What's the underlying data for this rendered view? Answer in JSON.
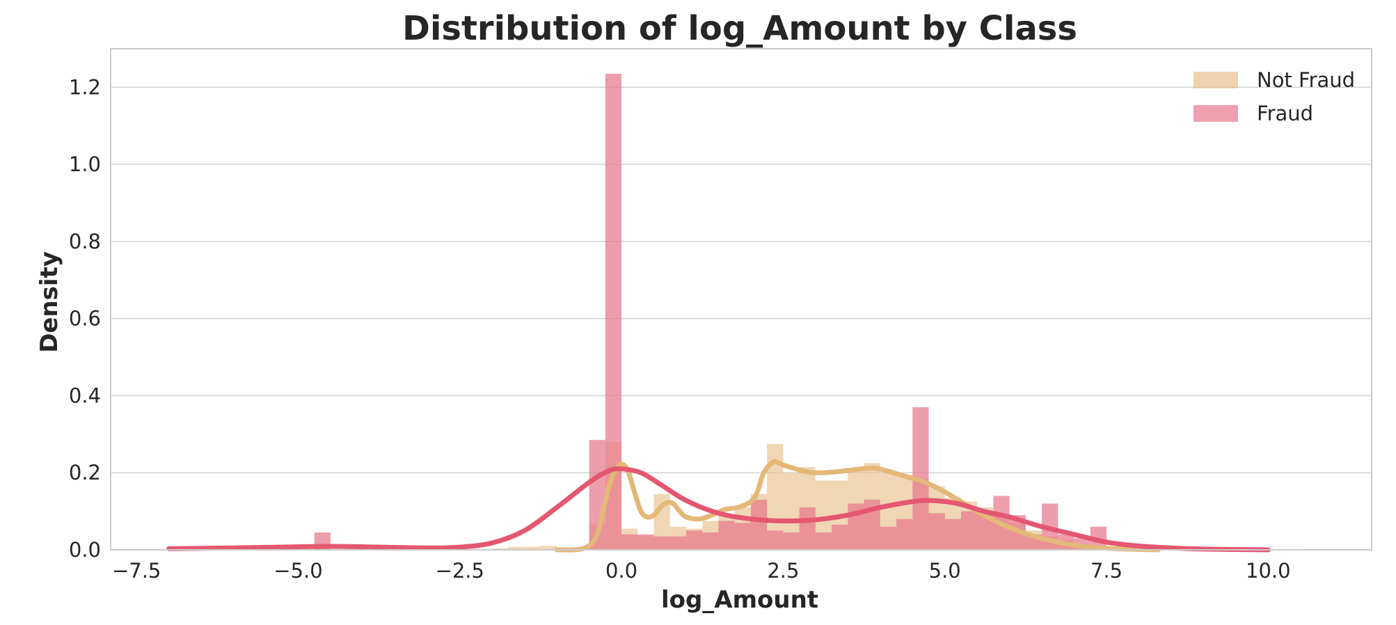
{
  "chart_data": {
    "type": "histogram-kde",
    "title": "Distribution of log_Amount by Class",
    "xlabel": "log_Amount",
    "ylabel": "Density",
    "xlim": [
      -7.9,
      11.6
    ],
    "ylim": [
      0,
      1.3
    ],
    "x_ticks": [
      -7.5,
      -5.0,
      -2.5,
      0.0,
      2.5,
      5.0,
      7.5,
      10.0
    ],
    "x_tick_labels": [
      "−7.5",
      "−5.0",
      "−2.5",
      "0.0",
      "2.5",
      "5.0",
      "7.5",
      "10.0"
    ],
    "y_ticks": [
      0.0,
      0.2,
      0.4,
      0.6,
      0.8,
      1.0,
      1.2
    ],
    "y_tick_labels": [
      "0.0",
      "0.2",
      "0.4",
      "0.6",
      "0.8",
      "1.0",
      "1.2"
    ],
    "grid": "horizontal",
    "legend_position": "top-right",
    "series": [
      {
        "name": "Not Fraud",
        "color": "#e8c08e",
        "kde_color": "#e3b878",
        "bins": [
          [
            -2.0,
            -1.75,
            0.004
          ],
          [
            -1.75,
            -1.5,
            0.008
          ],
          [
            -1.5,
            -1.25,
            0.008
          ],
          [
            -1.25,
            -1.0,
            0.01
          ],
          [
            -1.0,
            -0.75,
            0.006
          ],
          [
            -0.75,
            -0.5,
            0.005
          ],
          [
            -0.5,
            -0.25,
            0.065
          ],
          [
            -0.25,
            0.0,
            0.28
          ],
          [
            0.0,
            0.25,
            0.055
          ],
          [
            0.25,
            0.5,
            0.035
          ],
          [
            0.5,
            0.75,
            0.145
          ],
          [
            0.75,
            1.0,
            0.06
          ],
          [
            1.0,
            1.25,
            0.055
          ],
          [
            1.25,
            1.5,
            0.075
          ],
          [
            1.5,
            1.75,
            0.09
          ],
          [
            1.75,
            2.0,
            0.11
          ],
          [
            2.0,
            2.25,
            0.145
          ],
          [
            2.25,
            2.5,
            0.275
          ],
          [
            2.5,
            2.75,
            0.2
          ],
          [
            2.75,
            3.0,
            0.215
          ],
          [
            3.0,
            3.25,
            0.18
          ],
          [
            3.25,
            3.5,
            0.18
          ],
          [
            3.5,
            3.75,
            0.21
          ],
          [
            3.75,
            4.0,
            0.225
          ],
          [
            4.0,
            4.25,
            0.2
          ],
          [
            4.25,
            4.5,
            0.195
          ],
          [
            4.5,
            4.75,
            0.185
          ],
          [
            4.75,
            5.0,
            0.165
          ],
          [
            5.0,
            5.25,
            0.135
          ],
          [
            5.25,
            5.5,
            0.125
          ],
          [
            5.5,
            5.75,
            0.11
          ],
          [
            5.75,
            6.0,
            0.09
          ],
          [
            6.0,
            6.25,
            0.07
          ],
          [
            6.25,
            6.5,
            0.05
          ],
          [
            6.5,
            6.75,
            0.035
          ],
          [
            6.75,
            7.0,
            0.025
          ],
          [
            7.0,
            7.25,
            0.015
          ],
          [
            7.25,
            7.5,
            0.01
          ],
          [
            7.5,
            7.75,
            0.006
          ],
          [
            7.75,
            8.0,
            0.004
          ],
          [
            8.0,
            8.25,
            0.002
          ],
          [
            10.0,
            10.25,
            0.002
          ],
          [
            10.25,
            10.5,
            0.002
          ]
        ],
        "kde": [
          [
            -1.0,
            0.0
          ],
          [
            -0.6,
            0.003
          ],
          [
            -0.4,
            0.03
          ],
          [
            -0.3,
            0.09
          ],
          [
            -0.2,
            0.16
          ],
          [
            -0.1,
            0.205
          ],
          [
            0.0,
            0.222
          ],
          [
            0.1,
            0.205
          ],
          [
            0.2,
            0.15
          ],
          [
            0.3,
            0.1
          ],
          [
            0.4,
            0.085
          ],
          [
            0.5,
            0.09
          ],
          [
            0.6,
            0.11
          ],
          [
            0.7,
            0.122
          ],
          [
            0.8,
            0.12
          ],
          [
            0.9,
            0.1
          ],
          [
            1.0,
            0.085
          ],
          [
            1.2,
            0.08
          ],
          [
            1.4,
            0.09
          ],
          [
            1.6,
            0.105
          ],
          [
            1.8,
            0.11
          ],
          [
            2.0,
            0.125
          ],
          [
            2.1,
            0.15
          ],
          [
            2.2,
            0.2
          ],
          [
            2.35,
            0.228
          ],
          [
            2.5,
            0.22
          ],
          [
            2.8,
            0.205
          ],
          [
            3.0,
            0.2
          ],
          [
            3.3,
            0.202
          ],
          [
            3.6,
            0.208
          ],
          [
            3.9,
            0.212
          ],
          [
            4.1,
            0.205
          ],
          [
            4.4,
            0.19
          ],
          [
            4.7,
            0.175
          ],
          [
            5.0,
            0.15
          ],
          [
            5.3,
            0.12
          ],
          [
            5.6,
            0.09
          ],
          [
            5.9,
            0.065
          ],
          [
            6.2,
            0.045
          ],
          [
            6.5,
            0.03
          ],
          [
            6.8,
            0.018
          ],
          [
            7.1,
            0.01
          ],
          [
            7.4,
            0.005
          ],
          [
            7.8,
            0.002
          ],
          [
            8.3,
            0.0
          ]
        ]
      },
      {
        "name": "Fraud",
        "color": "#e8778b",
        "kde_color": "#e45771",
        "bins": [
          [
            -4.75,
            -4.5,
            0.045
          ],
          [
            -0.5,
            -0.25,
            0.285
          ],
          [
            -0.25,
            0.0,
            1.235
          ],
          [
            0.0,
            0.25,
            0.04
          ],
          [
            0.25,
            0.5,
            0.04
          ],
          [
            0.5,
            0.75,
            0.035
          ],
          [
            0.75,
            1.0,
            0.035
          ],
          [
            1.0,
            1.25,
            0.05
          ],
          [
            1.25,
            1.5,
            0.045
          ],
          [
            1.5,
            1.75,
            0.075
          ],
          [
            1.75,
            2.0,
            0.07
          ],
          [
            2.0,
            2.25,
            0.13
          ],
          [
            2.25,
            2.5,
            0.05
          ],
          [
            2.5,
            2.75,
            0.045
          ],
          [
            2.75,
            3.0,
            0.11
          ],
          [
            3.0,
            3.25,
            0.045
          ],
          [
            3.25,
            3.5,
            0.065
          ],
          [
            3.5,
            3.75,
            0.12
          ],
          [
            3.75,
            4.0,
            0.13
          ],
          [
            4.0,
            4.25,
            0.06
          ],
          [
            4.25,
            4.5,
            0.08
          ],
          [
            4.5,
            4.75,
            0.37
          ],
          [
            4.75,
            5.0,
            0.095
          ],
          [
            5.0,
            5.25,
            0.08
          ],
          [
            5.25,
            5.5,
            0.1
          ],
          [
            5.5,
            5.75,
            0.1
          ],
          [
            5.75,
            6.0,
            0.14
          ],
          [
            6.0,
            6.25,
            0.09
          ],
          [
            6.25,
            6.5,
            0.04
          ],
          [
            6.5,
            6.75,
            0.12
          ],
          [
            6.75,
            7.0,
            0.04
          ],
          [
            7.0,
            7.25,
            0.03
          ],
          [
            7.25,
            7.5,
            0.06
          ]
        ],
        "kde": [
          [
            -7.0,
            0.003
          ],
          [
            -6.0,
            0.005
          ],
          [
            -5.0,
            0.008
          ],
          [
            -4.5,
            0.009
          ],
          [
            -4.0,
            0.008
          ],
          [
            -3.0,
            0.005
          ],
          [
            -2.5,
            0.007
          ],
          [
            -2.0,
            0.018
          ],
          [
            -1.5,
            0.05
          ],
          [
            -1.0,
            0.11
          ],
          [
            -0.5,
            0.175
          ],
          [
            -0.2,
            0.205
          ],
          [
            0.0,
            0.21
          ],
          [
            0.3,
            0.2
          ],
          [
            0.6,
            0.17
          ],
          [
            1.0,
            0.128
          ],
          [
            1.5,
            0.095
          ],
          [
            2.0,
            0.08
          ],
          [
            2.5,
            0.075
          ],
          [
            3.0,
            0.078
          ],
          [
            3.5,
            0.09
          ],
          [
            4.0,
            0.11
          ],
          [
            4.5,
            0.125
          ],
          [
            4.8,
            0.128
          ],
          [
            5.2,
            0.12
          ],
          [
            5.6,
            0.1
          ],
          [
            6.0,
            0.085
          ],
          [
            6.5,
            0.06
          ],
          [
            7.0,
            0.04
          ],
          [
            7.5,
            0.02
          ],
          [
            8.0,
            0.01
          ],
          [
            8.5,
            0.005
          ],
          [
            9.0,
            0.002
          ],
          [
            10.0,
            0.0
          ]
        ]
      }
    ]
  }
}
